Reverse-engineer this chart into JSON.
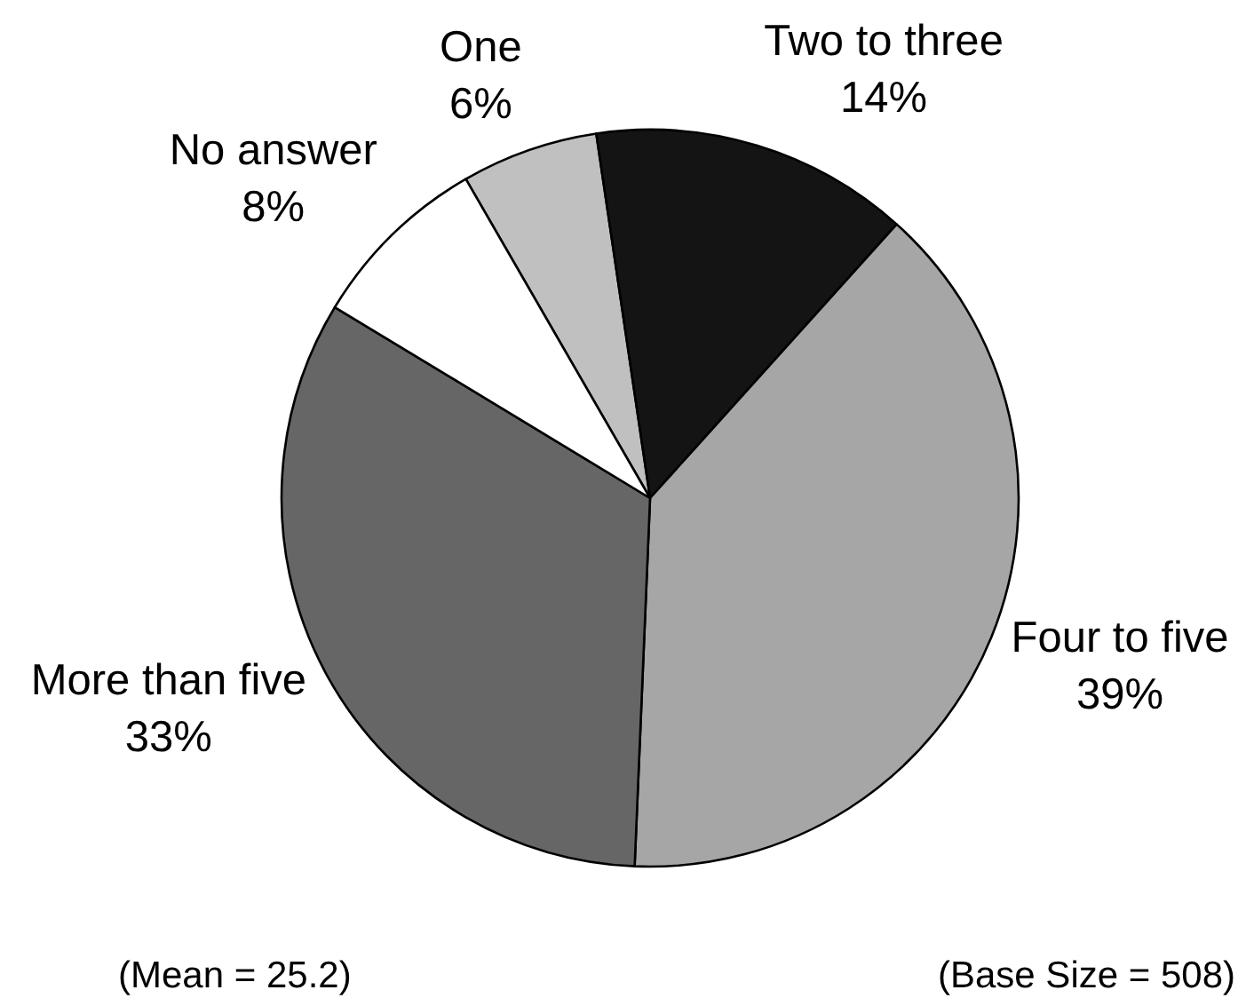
{
  "chart_data": {
    "type": "pie",
    "categories": [
      "One",
      "Two to three",
      "Four to five",
      "More than five",
      "No answer"
    ],
    "values": [
      6,
      14,
      39,
      33,
      8
    ],
    "colors": [
      "#c0c0c0",
      "#141414",
      "#a6a6a6",
      "#666666",
      "#ffffff"
    ],
    "value_labels": [
      "6%",
      "14%",
      "39%",
      "33%",
      "8%"
    ],
    "annotations": [
      "(Mean = 25.2)",
      "(Base Size = 508)"
    ]
  }
}
